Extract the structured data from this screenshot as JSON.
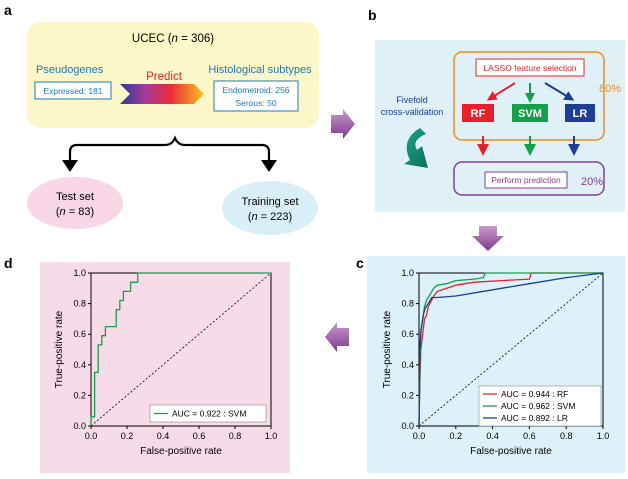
{
  "panel_labels": {
    "a": "a",
    "b": "b",
    "c": "c",
    "d": "d"
  },
  "panel_a": {
    "title": "UCEC (n = 306)",
    "pseudogenes_label": "Pseudogenes",
    "expressed_label": "Expressed: 181",
    "predict_label": "Predict",
    "histological_label": "Histological subtypes",
    "endometroid_label": "Endometroid: 256",
    "serous_label": "Serous: 50",
    "test_set_label": "Test set",
    "test_set_n": "(n = 83)",
    "training_set_label": "Training set",
    "training_set_n": "(n = 223)"
  },
  "panel_b": {
    "lasso_label": "LASSO feature selection",
    "pct_80": "80%",
    "fivefold_line1": "Fivefold",
    "fivefold_line2": "cross-validation",
    "rf_label": "RF",
    "svm_label": "SVM",
    "lr_label": "LR",
    "perform_label": "Perform prediction",
    "pct_20": "20%"
  },
  "colors": {
    "rf": "#e8202a",
    "svm": "#14a04a",
    "lr": "#1c3f94",
    "panel_a_bg": "#fbf7c8",
    "panel_b_bg": "#dff0f7",
    "panel_c_bg": "#ddf1f8",
    "panel_d_bg": "#f8dbe8",
    "test_bg": "#f9d6e6",
    "train_bg": "#d9eff8",
    "orange": "#f08a24",
    "purple": "#8a3d97"
  },
  "chart_data": [
    {
      "type": "line",
      "panel": "c",
      "xlabel": "False-positive rate",
      "ylabel": "True-positive rate",
      "xlim": [
        0,
        1
      ],
      "ylim": [
        0,
        1
      ],
      "ticks": [
        "0.0",
        "0.2",
        "0.4",
        "0.6",
        "0.8",
        "1.0"
      ],
      "legend_position": "bottom-right",
      "series": [
        {
          "name": "AUC = 0.944 :  RF",
          "color": "#e8202a",
          "points": [
            [
              0,
              0
            ],
            [
              0.005,
              0.3
            ],
            [
              0.01,
              0.5
            ],
            [
              0.02,
              0.6
            ],
            [
              0.03,
              0.7
            ],
            [
              0.04,
              0.72
            ],
            [
              0.05,
              0.78
            ],
            [
              0.06,
              0.8
            ],
            [
              0.08,
              0.85
            ],
            [
              0.1,
              0.88
            ],
            [
              0.15,
              0.9
            ],
            [
              0.2,
              0.92
            ],
            [
              0.3,
              0.94
            ],
            [
              0.45,
              0.95
            ],
            [
              0.6,
              0.96
            ],
            [
              0.61,
              1.0
            ],
            [
              1,
              1
            ]
          ]
        },
        {
          "name": "AUC = 0.962 :  SVM",
          "color": "#14a04a",
          "points": [
            [
              0,
              0
            ],
            [
              0.005,
              0.4
            ],
            [
              0.01,
              0.6
            ],
            [
              0.02,
              0.7
            ],
            [
              0.03,
              0.78
            ],
            [
              0.04,
              0.82
            ],
            [
              0.06,
              0.86
            ],
            [
              0.08,
              0.9
            ],
            [
              0.1,
              0.92
            ],
            [
              0.15,
              0.93
            ],
            [
              0.2,
              0.95
            ],
            [
              0.3,
              0.96
            ],
            [
              0.35,
              0.97
            ],
            [
              0.36,
              1.0
            ],
            [
              1,
              1
            ]
          ]
        },
        {
          "name": "AUC = 0.892 :  LR",
          "color": "#1c3f94",
          "points": [
            [
              0,
              0
            ],
            [
              0.005,
              0.5
            ],
            [
              0.01,
              0.62
            ],
            [
              0.02,
              0.7
            ],
            [
              0.03,
              0.76
            ],
            [
              0.05,
              0.8
            ],
            [
              0.07,
              0.84
            ],
            [
              0.1,
              0.84
            ],
            [
              0.2,
              0.85
            ],
            [
              0.4,
              0.89
            ],
            [
              0.6,
              0.93
            ],
            [
              0.8,
              0.97
            ],
            [
              1,
              1
            ]
          ]
        }
      ]
    },
    {
      "type": "line",
      "panel": "d",
      "xlabel": "False-positive rate",
      "ylabel": "True-positive rate",
      "xlim": [
        0,
        1
      ],
      "ylim": [
        0,
        1
      ],
      "ticks": [
        "0.0",
        "0.2",
        "0.4",
        "0.6",
        "0.8",
        "1.0"
      ],
      "legend_position": "bottom-right",
      "series": [
        {
          "name": "AUC = 0.922 :  SVM",
          "color": "#14a04a",
          "points": [
            [
              0,
              0
            ],
            [
              0,
              0.06
            ],
            [
              0.02,
              0.06
            ],
            [
              0.02,
              0.35
            ],
            [
              0.04,
              0.35
            ],
            [
              0.04,
              0.53
            ],
            [
              0.06,
              0.53
            ],
            [
              0.06,
              0.59
            ],
            [
              0.08,
              0.59
            ],
            [
              0.08,
              0.65
            ],
            [
              0.14,
              0.65
            ],
            [
              0.14,
              0.76
            ],
            [
              0.16,
              0.76
            ],
            [
              0.16,
              0.82
            ],
            [
              0.18,
              0.82
            ],
            [
              0.18,
              0.88
            ],
            [
              0.22,
              0.88
            ],
            [
              0.22,
              0.94
            ],
            [
              0.26,
              0.94
            ],
            [
              0.26,
              1.0
            ],
            [
              1,
              1
            ]
          ]
        }
      ]
    }
  ]
}
